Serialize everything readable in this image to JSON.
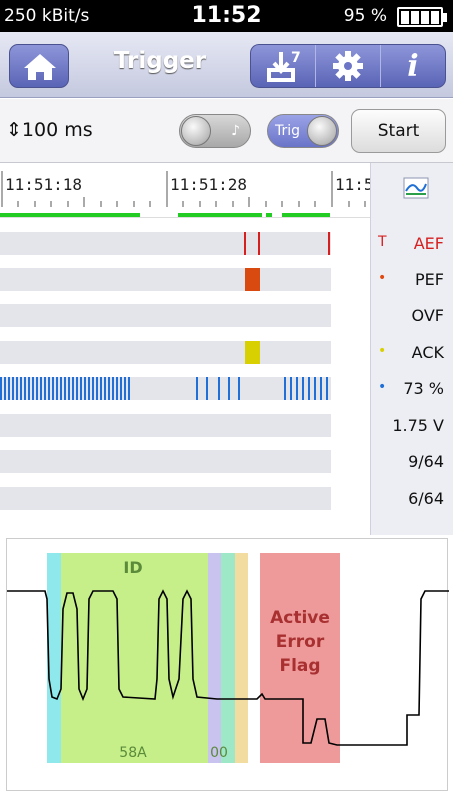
{
  "status": {
    "bitrate": "250 kBit/s",
    "time": "11:52",
    "battery": "95 %"
  },
  "header": {
    "title": "Trigger",
    "download_badge": "7",
    "info": "i"
  },
  "controls": {
    "duration": "⇕100 ms",
    "sound_toggle": "♪",
    "trig_toggle": "Trig",
    "start": "Start"
  },
  "timeline": {
    "ticks": [
      "11:51:18",
      "11:51:28",
      "11:5"
    ]
  },
  "rows": [
    {
      "label": "AEF",
      "marker": "T",
      "marker_color": "#d62020",
      "label_color": "#d62020"
    },
    {
      "label": "PEF",
      "marker": "•",
      "marker_color": "#e04a10",
      "label_color": "#111111"
    },
    {
      "label": "OVF",
      "marker": "",
      "marker_color": "#111111",
      "label_color": "#111111"
    },
    {
      "label": "ACK",
      "marker": "•",
      "marker_color": "#d8d000",
      "label_color": "#111111"
    },
    {
      "label": "73 %",
      "marker": "•",
      "marker_color": "#1f6fd6",
      "label_color": "#111111"
    },
    {
      "label": "1.75 V",
      "marker": "",
      "marker_color": "#111111",
      "label_color": "#111111"
    },
    {
      "label": "9/64",
      "marker": "",
      "marker_color": "#111111",
      "label_color": "#111111"
    },
    {
      "label": "6/64",
      "marker": "",
      "marker_color": "#111111",
      "label_color": "#111111"
    }
  ],
  "waveform": {
    "id_label": "ID",
    "id_value": "58A",
    "bits_value": "00",
    "error_label": "Active Error Flag",
    "colors": {
      "sof": "#8ee8ec",
      "id": "#c6ef8a",
      "rtr": "#c9c3ef",
      "ide": "#9ee8c7",
      "r0": "#f3dca0",
      "error": "#ee9a9a"
    }
  },
  "colors": {
    "accent": "#6a74c8",
    "green_bar": "#22cc22",
    "aef": "#d62020",
    "pef": "#d84a10",
    "ack": "#d8d000",
    "load": "#1f6fd6"
  }
}
